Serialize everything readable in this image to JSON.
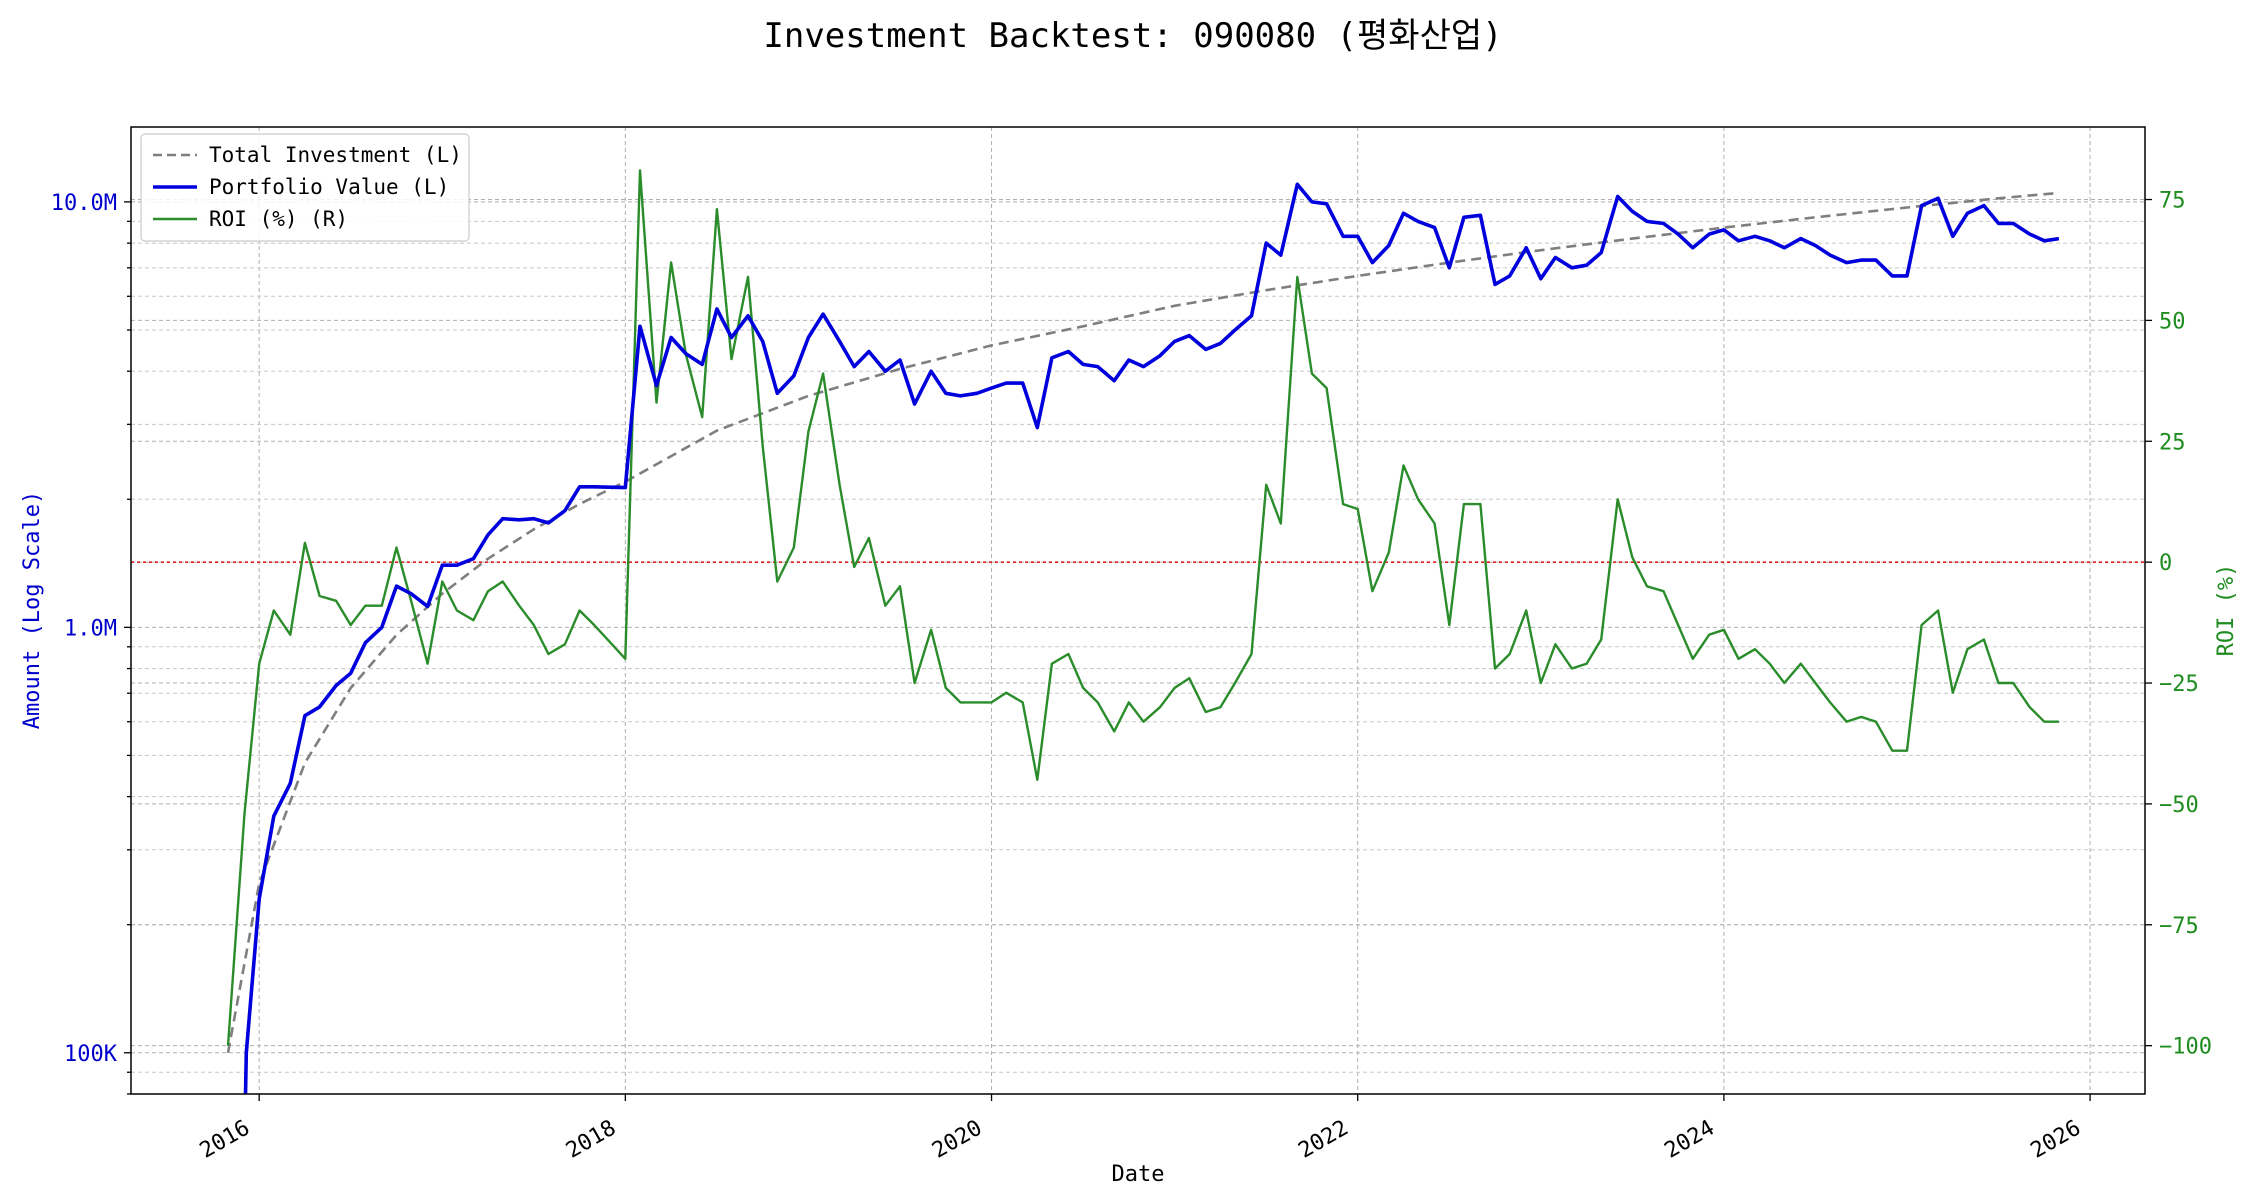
{
  "chart_data": {
    "type": "line",
    "title": "Investment Backtest: 090080 (평화산업)",
    "xlabel": "Date",
    "ylabel_left": "Amount (Log Scale)",
    "ylabel_right": "ROI (%)",
    "y_left_scale": "log",
    "x_range": [
      2015.3,
      2026.3
    ],
    "y_left_range": [
      80000,
      15000000
    ],
    "y_right_range": [
      -110,
      90
    ],
    "x_ticks": [
      {
        "value": 2016,
        "label": "2016"
      },
      {
        "value": 2018,
        "label": "2018"
      },
      {
        "value": 2020,
        "label": "2020"
      },
      {
        "value": 2022,
        "label": "2022"
      },
      {
        "value": 2024,
        "label": "2024"
      },
      {
        "value": 2026,
        "label": "2026"
      }
    ],
    "y_left_ticks": [
      {
        "value": 100000,
        "label": "100K"
      },
      {
        "value": 1000000,
        "label": "1.0M"
      },
      {
        "value": 10000000,
        "label": "10.0M"
      }
    ],
    "y_right_ticks": [
      {
        "value": -100,
        "label": "−100"
      },
      {
        "value": -75,
        "label": "−75"
      },
      {
        "value": -50,
        "label": "−50"
      },
      {
        "value": -25,
        "label": "−25"
      },
      {
        "value": 0,
        "label": "0"
      },
      {
        "value": 25,
        "label": "25"
      },
      {
        "value": 50,
        "label": "50"
      },
      {
        "value": 75,
        "label": "75"
      }
    ],
    "grid": true,
    "zero_line_color": "#e02020",
    "legend_position": "upper-left",
    "legend": [
      {
        "label": "Total Investment (L)",
        "color": "#7f7f7f",
        "style": "dashed"
      },
      {
        "label": "Portfolio Value (L)",
        "color": "#0000dd",
        "style": "solid"
      },
      {
        "label": "ROI (%) (R)",
        "color": "#2a8c2a",
        "style": "solid"
      }
    ],
    "series": [
      {
        "name": "Total Investment (L)",
        "axis": "left",
        "color": "#7f7f7f",
        "points": [
          [
            2015.83,
            100000
          ],
          [
            2016.0,
            250000
          ],
          [
            2016.25,
            480000
          ],
          [
            2016.5,
            720000
          ],
          [
            2016.75,
            960000
          ],
          [
            2017.0,
            1200000
          ],
          [
            2017.25,
            1450000
          ],
          [
            2017.5,
            1700000
          ],
          [
            2017.75,
            1950000
          ],
          [
            2018.0,
            2200000
          ],
          [
            2018.5,
            2900000
          ],
          [
            2019.0,
            3500000
          ],
          [
            2019.5,
            4050000
          ],
          [
            2020.0,
            4600000
          ],
          [
            2020.5,
            5100000
          ],
          [
            2021.0,
            5700000
          ],
          [
            2021.5,
            6200000
          ],
          [
            2022.0,
            6700000
          ],
          [
            2022.5,
            7200000
          ],
          [
            2023.0,
            7700000
          ],
          [
            2023.5,
            8200000
          ],
          [
            2024.0,
            8700000
          ],
          [
            2024.5,
            9200000
          ],
          [
            2025.0,
            9700000
          ],
          [
            2025.5,
            10200000
          ],
          [
            2025.83,
            10500000
          ]
        ]
      },
      {
        "name": "Portfolio Value (L)",
        "axis": "left",
        "color": "#0000dd",
        "points": [
          [
            2015.92,
            60000
          ],
          [
            2015.93,
            100000
          ],
          [
            2016.0,
            230000
          ],
          [
            2016.08,
            360000
          ],
          [
            2016.17,
            430000
          ],
          [
            2016.25,
            620000
          ],
          [
            2016.33,
            650000
          ],
          [
            2016.42,
            730000
          ],
          [
            2016.5,
            780000
          ],
          [
            2016.58,
            920000
          ],
          [
            2016.67,
            1000000
          ],
          [
            2016.75,
            1250000
          ],
          [
            2016.83,
            1200000
          ],
          [
            2016.92,
            1120000
          ],
          [
            2017.0,
            1400000
          ],
          [
            2017.08,
            1400000
          ],
          [
            2017.17,
            1450000
          ],
          [
            2017.25,
            1650000
          ],
          [
            2017.33,
            1800000
          ],
          [
            2017.42,
            1790000
          ],
          [
            2017.5,
            1800000
          ],
          [
            2017.58,
            1760000
          ],
          [
            2017.67,
            1880000
          ],
          [
            2017.75,
            2140000
          ],
          [
            2017.83,
            2140000
          ],
          [
            2018.0,
            2130000
          ],
          [
            2018.08,
            5100000
          ],
          [
            2018.17,
            3700000
          ],
          [
            2018.25,
            4800000
          ],
          [
            2018.33,
            4400000
          ],
          [
            2018.42,
            4150000
          ],
          [
            2018.5,
            5600000
          ],
          [
            2018.58,
            4800000
          ],
          [
            2018.67,
            5400000
          ],
          [
            2018.75,
            4700000
          ],
          [
            2018.83,
            3550000
          ],
          [
            2018.92,
            3900000
          ],
          [
            2019.0,
            4800000
          ],
          [
            2019.08,
            5450000
          ],
          [
            2019.17,
            4700000
          ],
          [
            2019.25,
            4100000
          ],
          [
            2019.33,
            4450000
          ],
          [
            2019.42,
            4000000
          ],
          [
            2019.5,
            4250000
          ],
          [
            2019.58,
            3350000
          ],
          [
            2019.67,
            4000000
          ],
          [
            2019.75,
            3550000
          ],
          [
            2019.83,
            3500000
          ],
          [
            2019.92,
            3550000
          ],
          [
            2020.0,
            3650000
          ],
          [
            2020.08,
            3750000
          ],
          [
            2020.17,
            3750000
          ],
          [
            2020.25,
            2950000
          ],
          [
            2020.33,
            4300000
          ],
          [
            2020.42,
            4450000
          ],
          [
            2020.5,
            4150000
          ],
          [
            2020.58,
            4100000
          ],
          [
            2020.67,
            3800000
          ],
          [
            2020.75,
            4250000
          ],
          [
            2020.83,
            4100000
          ],
          [
            2020.92,
            4350000
          ],
          [
            2021.0,
            4700000
          ],
          [
            2021.08,
            4850000
          ],
          [
            2021.17,
            4500000
          ],
          [
            2021.25,
            4650000
          ],
          [
            2021.33,
            5000000
          ],
          [
            2021.42,
            5400000
          ],
          [
            2021.5,
            8000000
          ],
          [
            2021.58,
            7500000
          ],
          [
            2021.67,
            11000000
          ],
          [
            2021.75,
            10000000
          ],
          [
            2021.83,
            9900000
          ],
          [
            2021.92,
            8300000
          ],
          [
            2022.0,
            8300000
          ],
          [
            2022.08,
            7200000
          ],
          [
            2022.17,
            7900000
          ],
          [
            2022.25,
            9400000
          ],
          [
            2022.33,
            9000000
          ],
          [
            2022.42,
            8700000
          ],
          [
            2022.5,
            7000000
          ],
          [
            2022.58,
            9200000
          ],
          [
            2022.67,
            9300000
          ],
          [
            2022.75,
            6400000
          ],
          [
            2022.83,
            6700000
          ],
          [
            2022.92,
            7800000
          ],
          [
            2023.0,
            6600000
          ],
          [
            2023.08,
            7400000
          ],
          [
            2023.17,
            7000000
          ],
          [
            2023.25,
            7100000
          ],
          [
            2023.33,
            7600000
          ],
          [
            2023.42,
            10300000
          ],
          [
            2023.5,
            9500000
          ],
          [
            2023.58,
            9000000
          ],
          [
            2023.67,
            8900000
          ],
          [
            2023.75,
            8400000
          ],
          [
            2023.83,
            7800000
          ],
          [
            2023.92,
            8400000
          ],
          [
            2024.0,
            8600000
          ],
          [
            2024.08,
            8100000
          ],
          [
            2024.17,
            8300000
          ],
          [
            2024.25,
            8100000
          ],
          [
            2024.33,
            7800000
          ],
          [
            2024.42,
            8200000
          ],
          [
            2024.5,
            7900000
          ],
          [
            2024.58,
            7500000
          ],
          [
            2024.67,
            7200000
          ],
          [
            2024.75,
            7300000
          ],
          [
            2024.83,
            7300000
          ],
          [
            2024.92,
            6700000
          ],
          [
            2025.0,
            6700000
          ],
          [
            2025.08,
            9800000
          ],
          [
            2025.17,
            10200000
          ],
          [
            2025.25,
            8300000
          ],
          [
            2025.33,
            9400000
          ],
          [
            2025.42,
            9800000
          ],
          [
            2025.5,
            8900000
          ],
          [
            2025.58,
            8900000
          ],
          [
            2025.67,
            8400000
          ],
          [
            2025.75,
            8100000
          ],
          [
            2025.83,
            8200000
          ]
        ]
      },
      {
        "name": "ROI (%) (R)",
        "axis": "right",
        "color": "#2a8c2a",
        "points": [
          [
            2015.83,
            -100
          ],
          [
            2015.92,
            -52
          ],
          [
            2016.0,
            -21
          ],
          [
            2016.08,
            -10
          ],
          [
            2016.17,
            -15
          ],
          [
            2016.25,
            4
          ],
          [
            2016.33,
            -7
          ],
          [
            2016.42,
            -8
          ],
          [
            2016.5,
            -13
          ],
          [
            2016.58,
            -9
          ],
          [
            2016.67,
            -9
          ],
          [
            2016.75,
            3
          ],
          [
            2016.83,
            -8
          ],
          [
            2016.92,
            -21
          ],
          [
            2017.0,
            -4
          ],
          [
            2017.08,
            -10
          ],
          [
            2017.17,
            -12
          ],
          [
            2017.25,
            -6
          ],
          [
            2017.33,
            -4
          ],
          [
            2017.42,
            -9
          ],
          [
            2017.5,
            -13
          ],
          [
            2017.58,
            -19
          ],
          [
            2017.67,
            -17
          ],
          [
            2017.75,
            -10
          ],
          [
            2017.83,
            -13
          ],
          [
            2018.0,
            -20
          ],
          [
            2018.08,
            81
          ],
          [
            2018.17,
            33
          ],
          [
            2018.25,
            62
          ],
          [
            2018.33,
            43
          ],
          [
            2018.42,
            30
          ],
          [
            2018.5,
            73
          ],
          [
            2018.58,
            42
          ],
          [
            2018.67,
            59
          ],
          [
            2018.75,
            24
          ],
          [
            2018.83,
            -4
          ],
          [
            2018.92,
            3
          ],
          [
            2019.0,
            27
          ],
          [
            2019.08,
            39
          ],
          [
            2019.17,
            16
          ],
          [
            2019.25,
            -1
          ],
          [
            2019.33,
            5
          ],
          [
            2019.42,
            -9
          ],
          [
            2019.5,
            -5
          ],
          [
            2019.58,
            -25
          ],
          [
            2019.67,
            -14
          ],
          [
            2019.75,
            -26
          ],
          [
            2019.83,
            -29
          ],
          [
            2019.92,
            -29
          ],
          [
            2020.0,
            -29
          ],
          [
            2020.08,
            -27
          ],
          [
            2020.17,
            -29
          ],
          [
            2020.25,
            -45
          ],
          [
            2020.33,
            -21
          ],
          [
            2020.42,
            -19
          ],
          [
            2020.5,
            -26
          ],
          [
            2020.58,
            -29
          ],
          [
            2020.67,
            -35
          ],
          [
            2020.75,
            -29
          ],
          [
            2020.83,
            -33
          ],
          [
            2020.92,
            -30
          ],
          [
            2021.0,
            -26
          ],
          [
            2021.08,
            -24
          ],
          [
            2021.17,
            -31
          ],
          [
            2021.25,
            -30
          ],
          [
            2021.33,
            -25
          ],
          [
            2021.42,
            -19
          ],
          [
            2021.5,
            16
          ],
          [
            2021.58,
            8
          ],
          [
            2021.67,
            59
          ],
          [
            2021.75,
            39
          ],
          [
            2021.83,
            36
          ],
          [
            2021.92,
            12
          ],
          [
            2022.0,
            11
          ],
          [
            2022.08,
            -6
          ],
          [
            2022.17,
            2
          ],
          [
            2022.25,
            20
          ],
          [
            2022.33,
            13
          ],
          [
            2022.42,
            8
          ],
          [
            2022.5,
            -13
          ],
          [
            2022.58,
            12
          ],
          [
            2022.67,
            12
          ],
          [
            2022.75,
            -22
          ],
          [
            2022.83,
            -19
          ],
          [
            2022.92,
            -10
          ],
          [
            2023.0,
            -25
          ],
          [
            2023.08,
            -17
          ],
          [
            2023.17,
            -22
          ],
          [
            2023.25,
            -21
          ],
          [
            2023.33,
            -16
          ],
          [
            2023.42,
            13
          ],
          [
            2023.5,
            1
          ],
          [
            2023.58,
            -5
          ],
          [
            2023.67,
            -6
          ],
          [
            2023.75,
            -13
          ],
          [
            2023.83,
            -20
          ],
          [
            2023.92,
            -15
          ],
          [
            2024.0,
            -14
          ],
          [
            2024.08,
            -20
          ],
          [
            2024.17,
            -18
          ],
          [
            2024.25,
            -21
          ],
          [
            2024.33,
            -25
          ],
          [
            2024.42,
            -21
          ],
          [
            2024.5,
            -25
          ],
          [
            2024.58,
            -29
          ],
          [
            2024.67,
            -33
          ],
          [
            2024.75,
            -32
          ],
          [
            2024.83,
            -33
          ],
          [
            2024.92,
            -39
          ],
          [
            2025.0,
            -39
          ],
          [
            2025.08,
            -13
          ],
          [
            2025.17,
            -10
          ],
          [
            2025.25,
            -27
          ],
          [
            2025.33,
            -18
          ],
          [
            2025.42,
            -16
          ],
          [
            2025.5,
            -25
          ],
          [
            2025.58,
            -25
          ],
          [
            2025.67,
            -30
          ],
          [
            2025.75,
            -33
          ],
          [
            2025.83,
            -33
          ]
        ]
      }
    ]
  }
}
